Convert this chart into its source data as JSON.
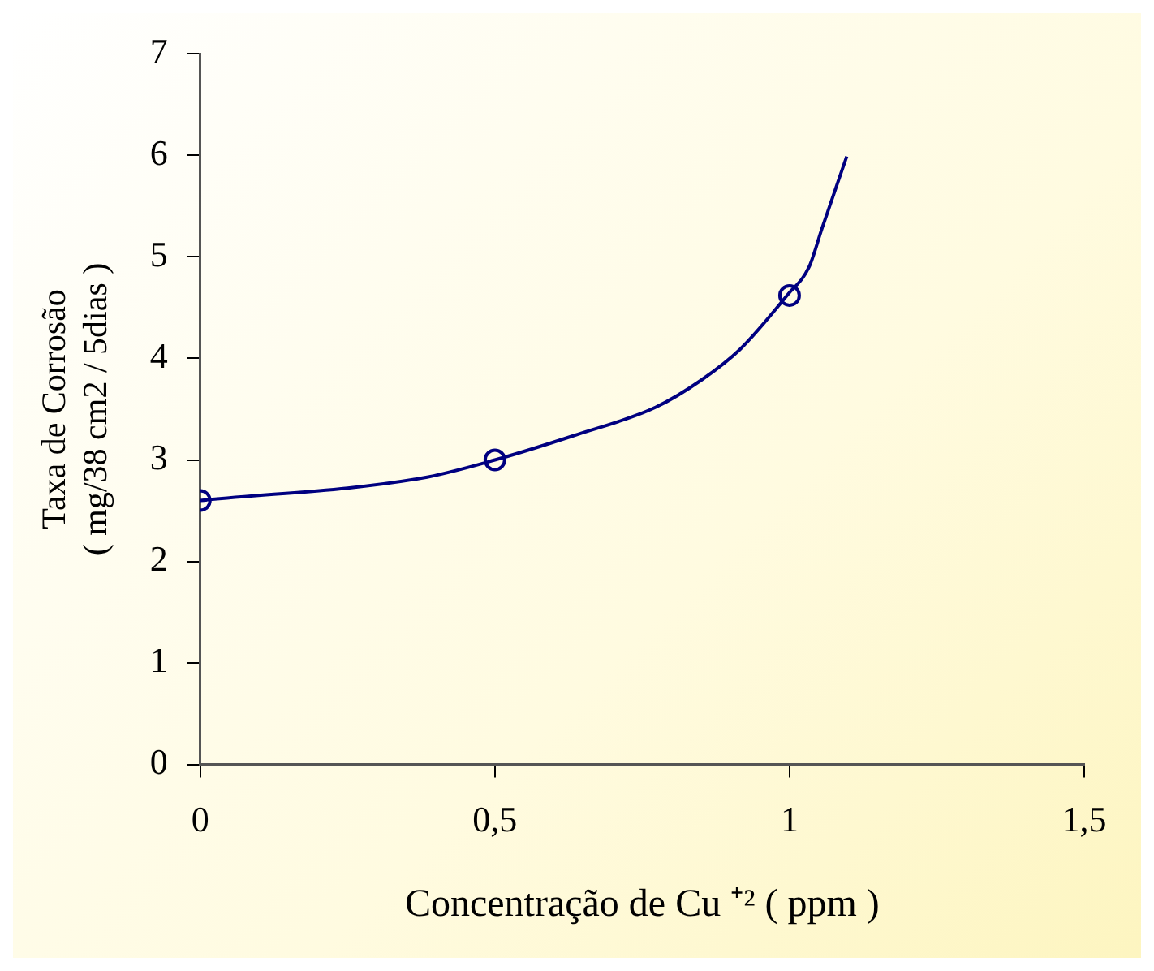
{
  "chart_data": {
    "type": "line",
    "xlabel": "Concentração de Cu ⁺² ( ppm )",
    "ylabel": "Taxa de Corrosão\n( mg/38 cm2 / 5dias )",
    "xlim": [
      0,
      1.5
    ],
    "xticks": [
      0,
      {
        "value": 0.5,
        "label": "0,5"
      },
      1,
      {
        "value": 1.5,
        "label": "1,5"
      }
    ],
    "ylim": [
      0,
      7
    ],
    "yticks": [
      0,
      1,
      2,
      3,
      4,
      5,
      6,
      7
    ],
    "grid": false,
    "legend": false,
    "series": [
      {
        "color": "#000080",
        "marker": "none",
        "line_style": "solid",
        "x": [
          0,
          0.375,
          0.5,
          0.634,
          0.773,
          0.851,
          0.916,
          0.997,
          1.033,
          1.055,
          1.097
        ],
        "values": [
          2.6,
          2.82,
          3.0,
          3.24,
          3.52,
          3.79,
          4.09,
          4.63,
          4.9,
          5.28,
          5.99
        ]
      },
      {
        "type": "scatter",
        "color": "#000080",
        "marker": "circle",
        "x": [
          0,
          0.5,
          1
        ],
        "values": [
          2.6,
          3.0,
          4.62
        ]
      }
    ]
  }
}
